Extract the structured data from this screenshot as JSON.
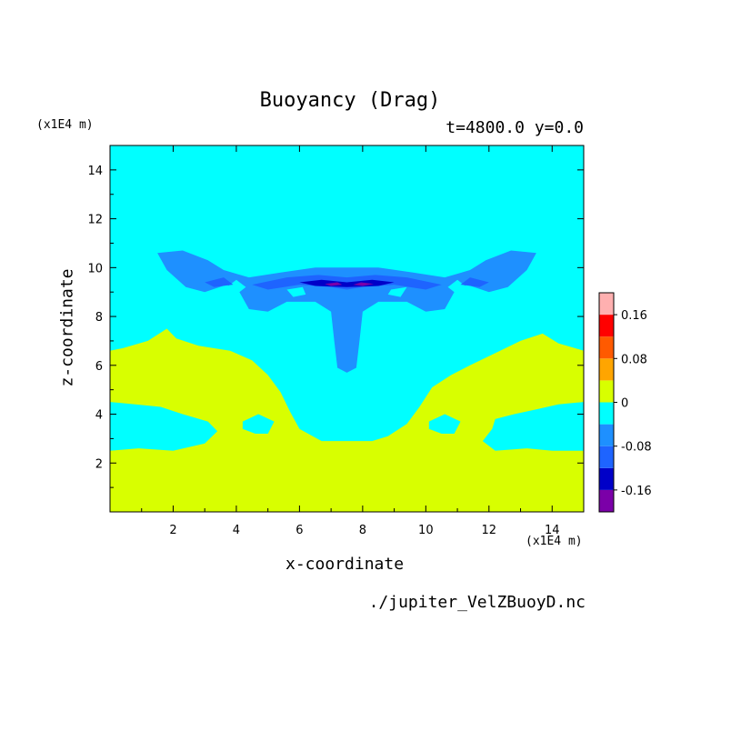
{
  "chart_data": {
    "type": "heatmap",
    "title": "Buoyancy (Drag)",
    "subtitle": "t=4800.0 y=0.0",
    "xlabel": "x-coordinate",
    "ylabel": "z-coordinate",
    "xunits": "(x1E4 m)",
    "yunits": "(x1E4 m)",
    "xlim": [
      0,
      15
    ],
    "ylim": [
      0,
      15
    ],
    "xticks": [
      "2",
      "4",
      "6",
      "8",
      "10",
      "12",
      "14"
    ],
    "yticks": [
      "2",
      "4",
      "6",
      "8",
      "10",
      "12",
      "14"
    ],
    "grid": false,
    "colorbar": {
      "placement": "right",
      "levels": [
        -0.2,
        -0.16,
        -0.12,
        -0.08,
        -0.04,
        0,
        0.04,
        0.08,
        0.12,
        0.16,
        0.2
      ],
      "tick_labels": [
        "0.16",
        "0.08",
        "0",
        "-0.08",
        "-0.16"
      ],
      "colors": [
        "#7b00a8",
        "#0000c8",
        "#1e64ff",
        "#1e90ff",
        "#00ffff",
        "#d8ff00",
        "#ffa500",
        "#ff5a00",
        "#ff0000",
        "#ffb0b0"
      ]
    },
    "regions": [
      {
        "value_range": "-0.04..0",
        "description": "background cyan field above z~6.5 and band z 2.5-4.5 at edges"
      },
      {
        "value_range": "0..0.04",
        "description": "yellow layer z<2.5 and z 4.5-6.5 at flanks"
      },
      {
        "value_range": "-0.08..-0.04",
        "description": "blue plume centered x~7.5 from z~5.7 to z~10"
      },
      {
        "value_range": "-0.2..-0.12",
        "description": "dark core near x 6.5-8.5, z~9.2"
      }
    ]
  },
  "source_file": "./jupiter_VelZBuoyD.nc"
}
